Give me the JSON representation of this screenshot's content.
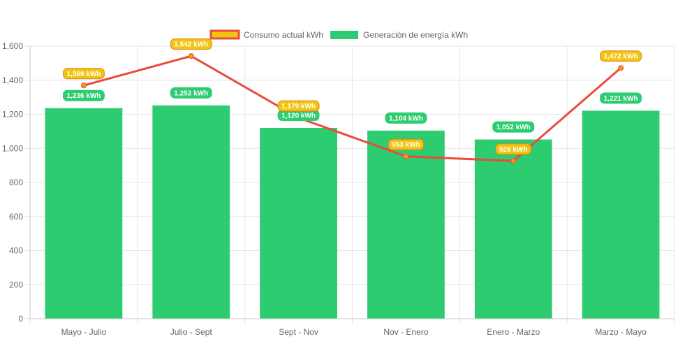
{
  "chart_data": {
    "type": "bar",
    "categories": [
      "Mayo - Julio",
      "Julio - Sept",
      "Sept - Nov",
      "Nov - Enero",
      "Enero - Marzo",
      "Marzo - Mayo"
    ],
    "series": [
      {
        "name": "Consumo actual kWh",
        "type": "line",
        "values": [
          1369,
          1542,
          1179,
          953,
          926,
          1472
        ],
        "labels": [
          "1,369 kWh",
          "1,542 kWh",
          "1,179 kWh",
          "953 kWh",
          "926 kWh",
          "1,472 kWh"
        ],
        "color": "#e74c3c",
        "label_color": "#f1c40f"
      },
      {
        "name": "Generación de energía kWh",
        "type": "bar",
        "values": [
          1236,
          1252,
          1120,
          1104,
          1052,
          1221
        ],
        "labels": [
          "1,236 kWh",
          "1,252 kWh",
          "1,120 kWh",
          "1,104 kWh",
          "1,052 kWh",
          "1,221 kWh"
        ],
        "color": "#2ecc71"
      }
    ],
    "ylim": [
      0,
      1600
    ],
    "yticks": [
      0,
      200,
      400,
      600,
      800,
      1000,
      1200,
      1400,
      1600
    ],
    "ytick_labels": [
      "0",
      "200",
      "400",
      "600",
      "800",
      "1,000",
      "1,200",
      "1,400",
      "1,600"
    ],
    "grid": true,
    "legend_position": "top-center"
  }
}
